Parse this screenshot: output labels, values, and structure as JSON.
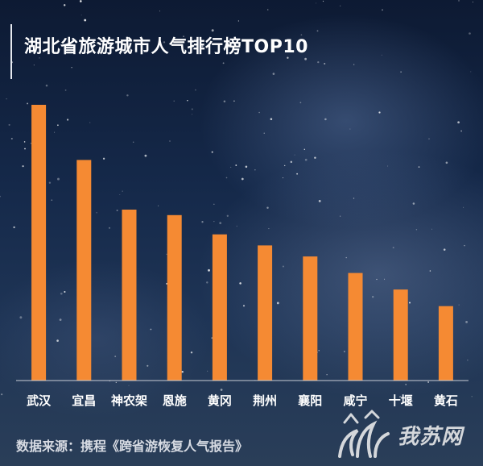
{
  "chart_data": {
    "type": "bar",
    "title": "湖北省旅游城市人气排行榜TOP10",
    "categories": [
      "武汉",
      "宜昌",
      "神农架",
      "恩施",
      "黄冈",
      "荆州",
      "襄阳",
      "咸宁",
      "十堰",
      "黄石"
    ],
    "values": [
      100,
      80,
      62,
      60,
      53,
      49,
      45,
      39,
      33,
      27
    ],
    "ylim": [
      0,
      100
    ],
    "grid": false,
    "legend": "none",
    "bar_color": "#f58a33"
  },
  "source_text": "数据来源：携程《跨省游恢复人气报告》",
  "watermark": {
    "text": "我苏网"
  },
  "colors": {
    "bar": "#f58a33",
    "title": "#ffffff",
    "axis": "#c9cdd6"
  }
}
